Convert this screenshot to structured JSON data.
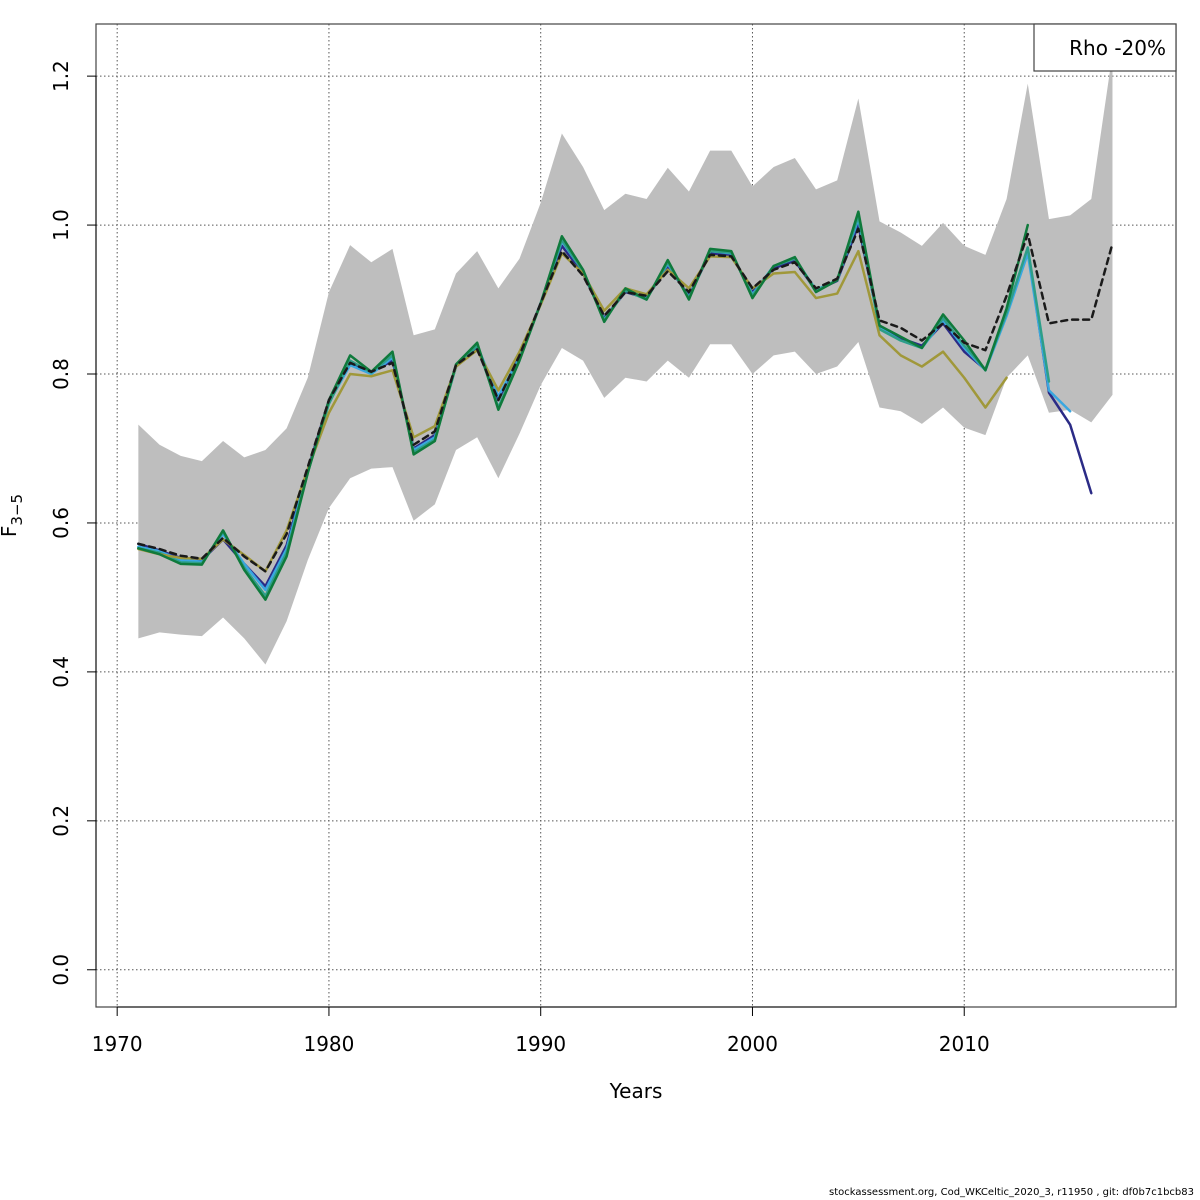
{
  "chart_data": {
    "type": "line",
    "xlabel": "Years",
    "ylabel_main": "F",
    "ylabel_sub": "3−5",
    "xlim": [
      1969,
      2020
    ],
    "ylim": [
      -0.05,
      1.27
    ],
    "xticks": [
      1970,
      1980,
      1990,
      2000,
      2010
    ],
    "yticks": [
      0.0,
      0.2,
      0.4,
      0.6,
      0.8,
      1.0,
      1.2
    ],
    "ytick_labels": [
      "0.0",
      "0.2",
      "0.4",
      "0.6",
      "0.8",
      "1.0",
      "1.2"
    ],
    "grid": true,
    "legend": {
      "placement": "top-right",
      "text": "Rho -20%"
    },
    "ci_band": {
      "x": [
        1971,
        1972,
        1973,
        1974,
        1975,
        1976,
        1977,
        1978,
        1979,
        1980,
        1981,
        1982,
        1983,
        1984,
        1985,
        1986,
        1987,
        1988,
        1989,
        1990,
        1991,
        1992,
        1993,
        1994,
        1995,
        1996,
        1997,
        1998,
        1999,
        2000,
        2001,
        2002,
        2003,
        2004,
        2005,
        2006,
        2007,
        2008,
        2009,
        2010,
        2011,
        2012,
        2013,
        2014,
        2015,
        2016,
        2017
      ],
      "upper": [
        0.732,
        0.705,
        0.69,
        0.683,
        0.71,
        0.688,
        0.698,
        0.727,
        0.795,
        0.91,
        0.973,
        0.95,
        0.968,
        0.852,
        0.86,
        0.935,
        0.965,
        0.915,
        0.955,
        1.03,
        1.123,
        1.078,
        1.02,
        1.042,
        1.035,
        1.077,
        1.045,
        1.1,
        1.1,
        1.052,
        1.078,
        1.09,
        1.048,
        1.06,
        1.17,
        1.005,
        0.99,
        0.972,
        1.003,
        0.972,
        0.96,
        1.035,
        1.19,
        1.008,
        1.013,
        1.035,
        1.23
      ],
      "lower": [
        0.445,
        0.453,
        0.45,
        0.448,
        0.473,
        0.445,
        0.41,
        0.468,
        0.55,
        0.62,
        0.66,
        0.673,
        0.675,
        0.603,
        0.625,
        0.698,
        0.715,
        0.66,
        0.72,
        0.785,
        0.835,
        0.818,
        0.768,
        0.795,
        0.79,
        0.818,
        0.795,
        0.84,
        0.84,
        0.8,
        0.825,
        0.83,
        0.8,
        0.81,
        0.843,
        0.755,
        0.75,
        0.733,
        0.755,
        0.728,
        0.718,
        0.795,
        0.825,
        0.748,
        0.752,
        0.735,
        0.772
      ]
    },
    "series": [
      {
        "color": "#1a1a1a",
        "dashed": true,
        "width": 2.5,
        "x": [
          1971,
          1972,
          1973,
          1974,
          1975,
          1976,
          1977,
          1978,
          1979,
          1980,
          1981,
          1982,
          1983,
          1984,
          1985,
          1986,
          1987,
          1988,
          1989,
          1990,
          1991,
          1992,
          1993,
          1994,
          1995,
          1996,
          1997,
          1998,
          1999,
          2000,
          2001,
          2002,
          2003,
          2004,
          2005,
          2006,
          2007,
          2008,
          2009,
          2010,
          2011,
          2012,
          2013,
          2014,
          2015,
          2016,
          2017
        ],
        "values": [
          0.572,
          0.565,
          0.556,
          0.552,
          0.58,
          0.555,
          0.535,
          0.585,
          0.675,
          0.765,
          0.815,
          0.803,
          0.815,
          0.705,
          0.723,
          0.812,
          0.833,
          0.765,
          0.825,
          0.895,
          0.965,
          0.932,
          0.878,
          0.91,
          0.905,
          0.938,
          0.91,
          0.96,
          0.958,
          0.915,
          0.94,
          0.95,
          0.915,
          0.928,
          0.995,
          0.872,
          0.862,
          0.845,
          0.868,
          0.842,
          0.832,
          0.905,
          0.988,
          0.868,
          0.873,
          0.873,
          0.975
        ]
      },
      {
        "color": "#2b2b86",
        "dashed": false,
        "width": 2.5,
        "x": [
          1971,
          1972,
          1973,
          1974,
          1975,
          1976,
          1977,
          1978,
          1979,
          1980,
          1981,
          1982,
          1983,
          1984,
          1985,
          1986,
          1987,
          1988,
          1989,
          1990,
          1991,
          1992,
          1993,
          1994,
          1995,
          1996,
          1997,
          1998,
          1999,
          2000,
          2001,
          2002,
          2003,
          2004,
          2005,
          2006,
          2007,
          2008,
          2009,
          2010,
          2011,
          2012,
          2013,
          2014,
          2015,
          2016
        ],
        "values": [
          0.572,
          0.563,
          0.553,
          0.55,
          0.578,
          0.545,
          0.515,
          0.57,
          0.672,
          0.765,
          0.815,
          0.802,
          0.818,
          0.7,
          0.718,
          0.81,
          0.835,
          0.765,
          0.825,
          0.895,
          0.972,
          0.935,
          0.875,
          0.91,
          0.902,
          0.945,
          0.905,
          0.962,
          0.96,
          0.91,
          0.942,
          0.952,
          0.912,
          0.925,
          1.0,
          0.865,
          0.848,
          0.838,
          0.868,
          0.83,
          0.806,
          0.88,
          0.968,
          0.775,
          0.732,
          0.64
        ]
      },
      {
        "color": "#3aa7e0",
        "dashed": false,
        "width": 2.5,
        "x": [
          1971,
          1972,
          1973,
          1974,
          1975,
          1976,
          1977,
          1978,
          1979,
          1980,
          1981,
          1982,
          1983,
          1984,
          1985,
          1986,
          1987,
          1988,
          1989,
          1990,
          1991,
          1992,
          1993,
          1994,
          1995,
          1996,
          1997,
          1998,
          1999,
          2000,
          2001,
          2002,
          2003,
          2004,
          2005,
          2006,
          2007,
          2008,
          2009,
          2010,
          2011,
          2012,
          2013,
          2014,
          2015
        ],
        "values": [
          0.568,
          0.562,
          0.55,
          0.548,
          0.585,
          0.545,
          0.51,
          0.565,
          0.67,
          0.762,
          0.812,
          0.8,
          0.822,
          0.698,
          0.715,
          0.81,
          0.838,
          0.77,
          0.822,
          0.895,
          0.978,
          0.938,
          0.873,
          0.912,
          0.902,
          0.948,
          0.903,
          0.965,
          0.962,
          0.907,
          0.945,
          0.955,
          0.913,
          0.926,
          1.008,
          0.862,
          0.845,
          0.835,
          0.872,
          0.835,
          0.805,
          0.878,
          0.962,
          0.778,
          0.75
        ]
      },
      {
        "color": "#2e9e88",
        "dashed": false,
        "width": 2.5,
        "x": [
          1971,
          1972,
          1973,
          1974,
          1975,
          1976,
          1977,
          1978,
          1979,
          1980,
          1981,
          1982,
          1983,
          1984,
          1985,
          1986,
          1987,
          1988,
          1989,
          1990,
          1991,
          1992,
          1993,
          1994,
          1995,
          1996,
          1997,
          1998,
          1999,
          2000,
          2001,
          2002,
          2003,
          2004,
          2005,
          2006,
          2007,
          2008,
          2009,
          2010,
          2011,
          2012,
          2013,
          2014
        ],
        "values": [
          0.566,
          0.56,
          0.547,
          0.546,
          0.588,
          0.54,
          0.502,
          0.56,
          0.668,
          0.76,
          0.818,
          0.802,
          0.825,
          0.695,
          0.712,
          0.81,
          0.838,
          0.755,
          0.82,
          0.895,
          0.98,
          0.938,
          0.872,
          0.912,
          0.9,
          0.95,
          0.902,
          0.965,
          0.963,
          0.905,
          0.945,
          0.955,
          0.912,
          0.926,
          1.012,
          0.86,
          0.845,
          0.835,
          0.875,
          0.838,
          0.806,
          0.882,
          0.97,
          0.79
        ]
      },
      {
        "color": "#a0983a",
        "dashed": false,
        "width": 2.5,
        "x": [
          1971,
          1972,
          1973,
          1974,
          1975,
          1976,
          1977,
          1978,
          1979,
          1980,
          1981,
          1982,
          1983,
          1984,
          1985,
          1986,
          1987,
          1988,
          1989,
          1990,
          1991,
          1992,
          1993,
          1994,
          1995,
          1996,
          1997,
          1998,
          1999,
          2000,
          2001,
          2002,
          2003,
          2004,
          2005,
          2006,
          2007,
          2008,
          2009,
          2010,
          2011,
          2012
        ],
        "values": [
          0.565,
          0.558,
          0.553,
          0.552,
          0.578,
          0.557,
          0.535,
          0.59,
          0.672,
          0.748,
          0.8,
          0.797,
          0.805,
          0.715,
          0.73,
          0.81,
          0.832,
          0.778,
          0.83,
          0.893,
          0.962,
          0.935,
          0.885,
          0.915,
          0.907,
          0.94,
          0.915,
          0.958,
          0.957,
          0.915,
          0.935,
          0.937,
          0.902,
          0.908,
          0.965,
          0.852,
          0.825,
          0.81,
          0.83,
          0.795,
          0.755,
          0.795
        ]
      },
      {
        "color": "#0f7a3c",
        "dashed": false,
        "width": 2.5,
        "x": [
          1971,
          1972,
          1973,
          1974,
          1975,
          1976,
          1977,
          1978,
          1979,
          1980,
          1981,
          1982,
          1983,
          1984,
          1985,
          1986,
          1987,
          1988,
          1989,
          1990,
          1991,
          1992,
          1993,
          1994,
          1995,
          1996,
          1997,
          1998,
          1999,
          2000,
          2001,
          2002,
          2003,
          2004,
          2005,
          2006,
          2007,
          2008,
          2009,
          2010,
          2011,
          2012,
          2013
        ],
        "values": [
          0.566,
          0.558,
          0.545,
          0.544,
          0.59,
          0.537,
          0.497,
          0.555,
          0.667,
          0.765,
          0.825,
          0.803,
          0.83,
          0.692,
          0.71,
          0.813,
          0.842,
          0.752,
          0.818,
          0.895,
          0.985,
          0.94,
          0.87,
          0.915,
          0.9,
          0.953,
          0.9,
          0.968,
          0.965,
          0.902,
          0.945,
          0.957,
          0.91,
          0.926,
          1.018,
          0.865,
          0.85,
          0.835,
          0.88,
          0.845,
          0.805,
          0.888,
          1.0
        ]
      }
    ]
  },
  "footer": "stockassessment.org, Cod_WKCeltic_2020_3, r11950 , git: df0b7c1bcb83"
}
